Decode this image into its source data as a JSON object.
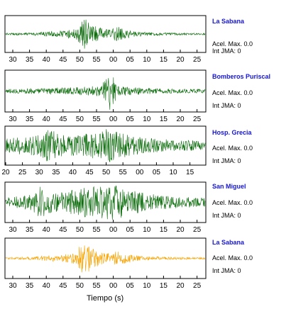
{
  "panels": [
    {
      "station": "La Sabana",
      "acel_label": "Acel. Max.",
      "acel_value": "0.0",
      "int_label": "Int JMA:",
      "int_value": "0"
    },
    {
      "station": "Bomberos Puriscal",
      "acel_label": "Acel. Max.",
      "acel_value": "0.0",
      "int_label": "Int JMA:",
      "int_value": "0"
    },
    {
      "station": "Hosp. Grecia",
      "acel_label": "Acel. Max.",
      "acel_value": "0.0",
      "int_label": "Int JMA:",
      "int_value": "0"
    },
    {
      "station": "San Miguel",
      "acel_label": "Acel. Max.",
      "acel_value": "0.0",
      "int_label": "Int JMA:",
      "int_value": "0"
    },
    {
      "station": "La Sabana",
      "acel_label": "Acel. Max.",
      "acel_value": "0.0",
      "int_label": "Int JMA:",
      "int_value": "0"
    }
  ],
  "xlabel": "Tiempo (s)",
  "colors": {
    "trace": "#0a6b0a",
    "highlight": "#f5a300",
    "station_label": "#1515d6",
    "axis": "#000000"
  },
  "chart_data": [
    {
      "type": "line",
      "title": "La Sabana",
      "x_ticks": [
        "30",
        "35",
        "40",
        "45",
        "50",
        "55",
        "00",
        "05",
        "10",
        "15",
        "20",
        "25"
      ],
      "series": [
        {
          "name": "La Sabana",
          "color": "#0a6b0a",
          "amplitude_envelope": [
            0.05,
            0.06,
            0.07,
            0.08,
            0.12,
            0.15,
            0.18,
            0.22,
            0.3,
            0.95,
            0.55,
            0.35,
            0.28,
            0.45,
            0.25,
            0.15,
            0.12,
            0.1,
            0.08,
            0.07,
            0.06,
            0.06,
            0.05,
            0.05
          ]
        }
      ]
    },
    {
      "type": "line",
      "title": "Bomberos Puriscal",
      "x_ticks": [
        "30",
        "35",
        "40",
        "45",
        "50",
        "55",
        "00",
        "05",
        "10",
        "15",
        "20",
        "25"
      ],
      "series": [
        {
          "name": "Bomberos Puriscal",
          "color": "#0a6b0a",
          "amplitude_envelope": [
            0.1,
            0.12,
            0.12,
            0.15,
            0.14,
            0.16,
            0.18,
            0.18,
            0.2,
            0.22,
            0.25,
            0.25,
            1.0,
            0.3,
            0.22,
            0.2,
            0.18,
            0.15,
            0.12,
            0.12,
            0.1,
            0.1,
            0.1,
            0.1
          ]
        }
      ]
    },
    {
      "type": "line",
      "title": "Hosp. Grecia",
      "x_ticks": [
        "20",
        "25",
        "30",
        "35",
        "40",
        "45",
        "50",
        "55",
        "00",
        "05",
        "10",
        "15"
      ],
      "series": [
        {
          "name": "Hosp. Grecia",
          "color": "#0a6b0a",
          "amplitude_envelope": [
            0.4,
            0.45,
            0.5,
            0.55,
            0.65,
            0.95,
            0.7,
            0.6,
            0.55,
            0.6,
            0.85,
            0.9,
            0.95,
            0.75,
            0.6,
            0.5,
            0.45,
            0.4,
            0.35,
            0.35,
            0.3,
            0.3,
            0.28,
            0.25
          ]
        }
      ]
    },
    {
      "type": "line",
      "title": "San Miguel",
      "x_ticks": [
        "30",
        "35",
        "40",
        "45",
        "50",
        "55",
        "00",
        "05",
        "10",
        "15",
        "20",
        "25"
      ],
      "series": [
        {
          "name": "San Miguel",
          "color": "#0a6b0a",
          "amplitude_envelope": [
            0.25,
            0.3,
            0.35,
            0.45,
            0.85,
            0.6,
            0.5,
            0.6,
            0.7,
            0.8,
            0.85,
            0.9,
            0.95,
            0.9,
            0.7,
            0.6,
            0.5,
            0.45,
            0.4,
            0.35,
            0.3,
            0.3,
            0.25,
            0.25
          ]
        }
      ]
    },
    {
      "type": "line",
      "title": "La Sabana",
      "x_ticks": [
        "30",
        "35",
        "40",
        "45",
        "50",
        "55",
        "00",
        "05",
        "10",
        "15",
        "20",
        "25"
      ],
      "series": [
        {
          "name": "La Sabana",
          "color": "#f5a300",
          "amplitude_envelope": [
            0.05,
            0.06,
            0.07,
            0.08,
            0.12,
            0.15,
            0.18,
            0.22,
            0.3,
            0.95,
            0.55,
            0.35,
            0.28,
            0.45,
            0.25,
            0.15,
            0.12,
            0.1,
            0.08,
            0.07,
            0.06,
            0.06,
            0.05,
            0.05
          ]
        }
      ]
    }
  ]
}
